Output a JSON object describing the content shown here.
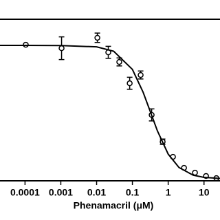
{
  "chart_data": {
    "type": "scatter",
    "xlabel": "Phenamacril (μM)",
    "xscale": "log",
    "xlim": [
      2e-05,
      28
    ],
    "xticks": [
      0.0001,
      0.001,
      0.01,
      0.1,
      1,
      10
    ],
    "ylim": [
      -1.5,
      119.6
    ],
    "series": [
      {
        "color": "#000000",
        "marker": "circle",
        "x": [
          0.000105,
          0.00105,
          0.0105,
          0.0212,
          0.043,
          0.084,
          0.17,
          0.345,
          0.7,
          1.36,
          2.77,
          5.6,
          11.4,
          22.2
        ],
        "values": [
          100.5,
          97.9,
          105.7,
          94.8,
          87.6,
          71.6,
          77.8,
          47.9,
          27.8,
          16.5,
          8.2,
          4.6,
          2.1,
          0.5
        ],
        "errors": [
          null,
          8.5,
          3.5,
          4.5,
          3,
          4.5,
          3,
          4.5,
          2,
          null,
          null,
          null,
          null,
          null
        ]
      },
      {
        "color": "#000000",
        "marker": "line",
        "x": [
          2e-05,
          0.0001,
          0.001,
          0.01,
          0.03,
          0.1,
          0.2,
          0.32,
          0.5,
          1,
          2,
          5,
          10,
          28
        ],
        "values": [
          100,
          100,
          99.9,
          98.9,
          95.6,
          82,
          64.8,
          50,
          35.9,
          18.5,
          8.5,
          2.7,
          1.1,
          0.3
        ]
      }
    ]
  }
}
